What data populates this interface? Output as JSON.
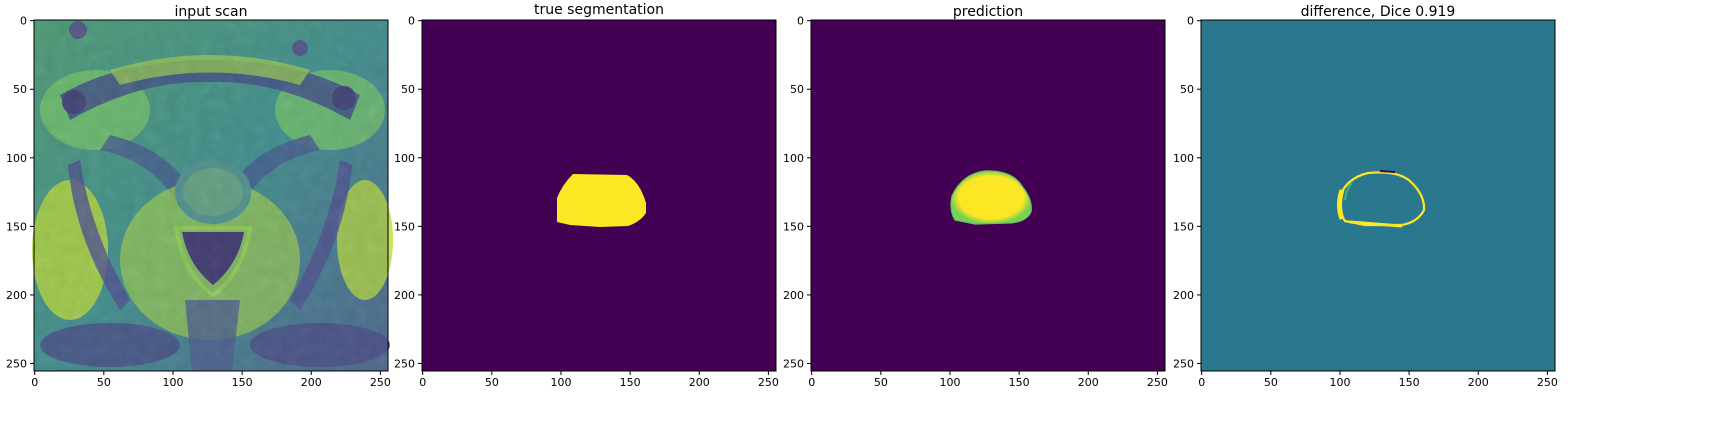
{
  "figure": {
    "panels": [
      {
        "id": "input",
        "title": "input scan",
        "xticks": [
          "0",
          "50",
          "100",
          "150",
          "200",
          "250"
        ],
        "yticks": [
          "0",
          "50",
          "100",
          "150",
          "200",
          "250"
        ]
      },
      {
        "id": "truth",
        "title": "true segmentation",
        "xticks": [
          "0",
          "50",
          "100",
          "150",
          "200",
          "250"
        ],
        "yticks": [
          "0",
          "50",
          "100",
          "150",
          "200",
          "250"
        ]
      },
      {
        "id": "prediction",
        "title": "prediction",
        "xticks": [
          "0",
          "50",
          "100",
          "150",
          "200",
          "250"
        ],
        "yticks": [
          "0",
          "50",
          "100",
          "150",
          "200",
          "250"
        ]
      },
      {
        "id": "difference",
        "title": "difference, Dice 0.919",
        "xticks": [
          "0",
          "50",
          "100",
          "150",
          "200",
          "250"
        ],
        "yticks": [
          "0",
          "50",
          "100",
          "150",
          "200",
          "250"
        ]
      }
    ],
    "colors": {
      "viridis_low": "#440154",
      "viridis_high": "#fde725",
      "viridis_mid": "#2a788e",
      "viridis_green": "#35b779",
      "viridis_teal": "#21918c"
    }
  }
}
